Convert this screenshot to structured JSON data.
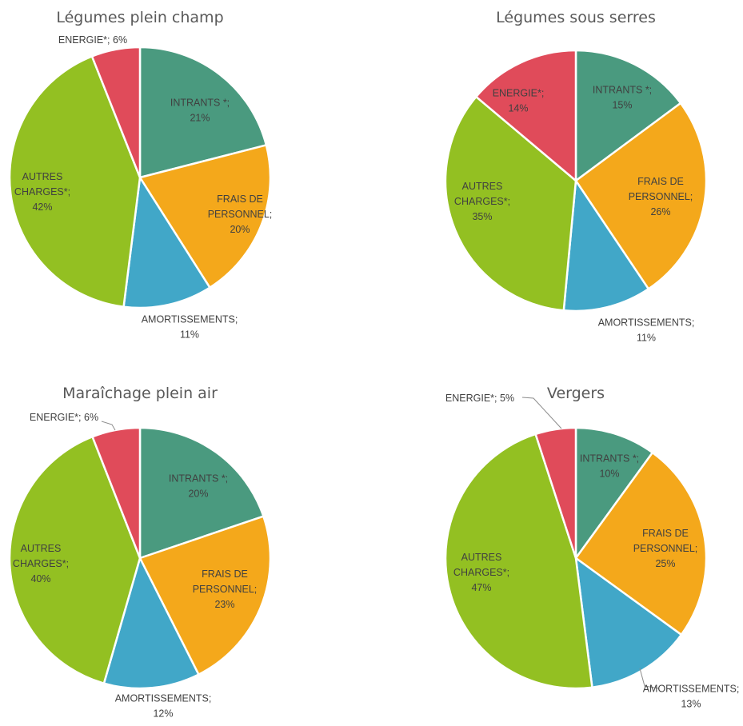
{
  "chart_data": [
    {
      "type": "pie",
      "title": "Légumes plein champ",
      "categories": [
        "INTRANTS *",
        "FRAIS DE PERSONNEL",
        "AMORTISSEMENTS",
        "AUTRES CHARGES*",
        "ENERGIE*"
      ],
      "values": [
        21,
        20,
        11,
        42,
        6
      ],
      "unit": "%",
      "colors": [
        "#4a9a7f",
        "#f4a81b",
        "#41a7c8",
        "#93c022",
        "#e04b5a"
      ],
      "labels": [
        {
          "lines": [
            "INTRANTS *;",
            "21%"
          ]
        },
        {
          "lines": [
            "FRAIS DE",
            "PERSONNEL;",
            "20%"
          ]
        },
        {
          "lines": [
            "AMORTISSEMENTS;",
            "11%"
          ]
        },
        {
          "lines": [
            "AUTRES",
            "CHARGES*;",
            "42%"
          ]
        },
        {
          "lines": [
            "ENERGIE*; 6%"
          ]
        }
      ]
    },
    {
      "type": "pie",
      "title": "Légumes sous serres",
      "categories": [
        "INTRANTS *",
        "FRAIS DE PERSONNEL",
        "AMORTISSEMENTS",
        "AUTRES CHARGES*",
        "ENERGIE*"
      ],
      "values": [
        15,
        26,
        11,
        35,
        14
      ],
      "unit": "%",
      "colors": [
        "#4a9a7f",
        "#f4a81b",
        "#41a7c8",
        "#93c022",
        "#e04b5a"
      ],
      "labels": [
        {
          "lines": [
            "INTRANTS *;",
            "15%"
          ]
        },
        {
          "lines": [
            "FRAIS DE",
            "PERSONNEL;",
            "26%"
          ]
        },
        {
          "lines": [
            "AMORTISSEMENTS;",
            "11%"
          ]
        },
        {
          "lines": [
            "AUTRES",
            "CHARGES*;",
            "35%"
          ]
        },
        {
          "lines": [
            "ENERGIE*;",
            "14%"
          ]
        }
      ]
    },
    {
      "type": "pie",
      "title": "Maraîchage plein air",
      "categories": [
        "INTRANTS *",
        "FRAIS DE PERSONNEL",
        "AMORTISSEMENTS",
        "AUTRES CHARGES*",
        "ENERGIE*"
      ],
      "values": [
        20,
        23,
        12,
        40,
        6
      ],
      "unit": "%",
      "colors": [
        "#4a9a7f",
        "#f4a81b",
        "#41a7c8",
        "#93c022",
        "#e04b5a"
      ],
      "labels": [
        {
          "lines": [
            "INTRANTS *;",
            "20%"
          ]
        },
        {
          "lines": [
            "FRAIS DE",
            "PERSONNEL;",
            "23%"
          ]
        },
        {
          "lines": [
            "AMORTISSEMENTS;",
            "12%"
          ]
        },
        {
          "lines": [
            "AUTRES",
            "CHARGES*;",
            "40%"
          ]
        },
        {
          "lines": [
            "ENERGIE*; 6%"
          ]
        }
      ]
    },
    {
      "type": "pie",
      "title": "Vergers",
      "categories": [
        "INTRANTS *",
        "FRAIS DE PERSONNEL",
        "AMORTISSEMENTS",
        "AUTRES CHARGES*",
        "ENERGIE*"
      ],
      "values": [
        10,
        25,
        13,
        47,
        5
      ],
      "unit": "%",
      "colors": [
        "#4a9a7f",
        "#f4a81b",
        "#41a7c8",
        "#93c022",
        "#e04b5a"
      ],
      "labels": [
        {
          "lines": [
            "INTRANTS *;",
            "10%"
          ]
        },
        {
          "lines": [
            "FRAIS DE",
            "PERSONNEL;",
            "25%"
          ]
        },
        {
          "lines": [
            "AMORTISSEMENTS;",
            "13%"
          ]
        },
        {
          "lines": [
            "AUTRES",
            "CHARGES*;",
            "47%"
          ]
        },
        {
          "lines": [
            "ENERGIE*; 5%"
          ]
        }
      ]
    }
  ]
}
